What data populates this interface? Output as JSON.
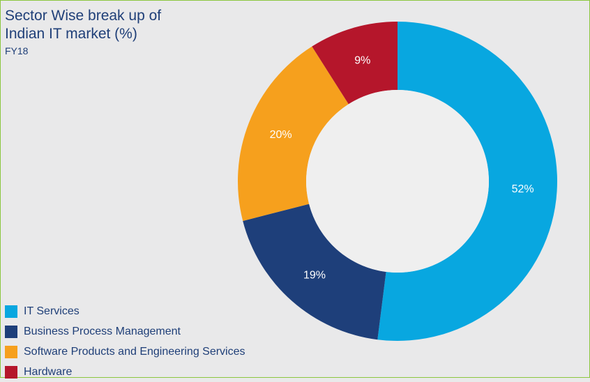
{
  "header": {
    "title_line1": "Sector Wise break up of",
    "title_line2": "Indian IT market (%)",
    "subtitle": "FY18"
  },
  "chart_data": {
    "type": "pie",
    "variant": "donut",
    "categories": [
      "IT Services",
      "Business Process Management",
      "Software Products and Engineering Services",
      "Hardware"
    ],
    "values": [
      52,
      19,
      20,
      9
    ],
    "data_labels": [
      "52%",
      "19%",
      "20%",
      "9%"
    ],
    "colors": [
      "#08a7e0",
      "#1e3f7a",
      "#f6a01d",
      "#b5162b"
    ],
    "legend_position": "bottom-left",
    "start_angle": "12 o'clock",
    "direction": "clockwise"
  }
}
